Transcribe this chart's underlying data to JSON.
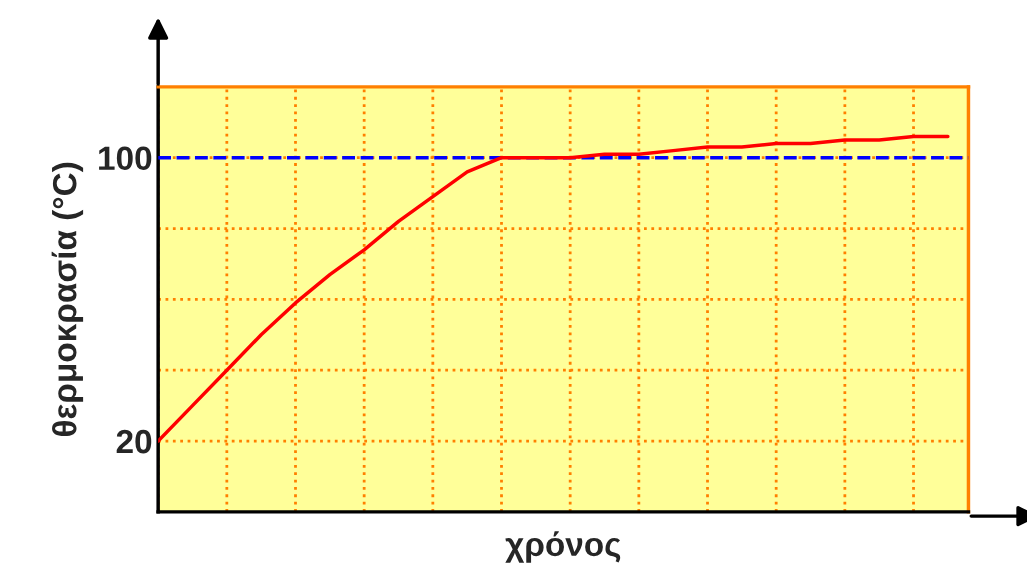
{
  "chart_data": {
    "type": "line",
    "xlabel": "χρόνος",
    "ylabel": "θερμοκρασία (°C)",
    "categories": [
      null,
      null,
      null,
      null,
      null,
      null,
      null,
      null,
      null,
      null,
      null,
      null,
      null,
      null,
      null,
      null,
      null,
      null,
      null,
      null,
      null,
      null,
      null,
      null
    ],
    "series": [
      {
        "color": "#ff0000",
        "values": [
          20,
          30,
          40,
          50,
          59,
          67,
          74,
          82,
          89,
          96,
          100,
          100,
          100,
          101,
          101,
          102,
          103,
          103,
          104,
          104,
          105,
          105,
          106,
          106
        ]
      }
    ],
    "ylim": [
      0,
      120
    ],
    "yticks": [
      20,
      {
        "value": 40,
        "label": null
      },
      {
        "value": 60,
        "label": null
      },
      {
        "value": 80,
        "label": null
      },
      100
    ],
    "ref_lines": [
      {
        "axis": "y",
        "value": 100,
        "color": "#0000ff",
        "line_style": "dashed"
      }
    ],
    "grid": true,
    "tick_labels": "y",
    "marker": "none",
    "line_style": "solid"
  }
}
